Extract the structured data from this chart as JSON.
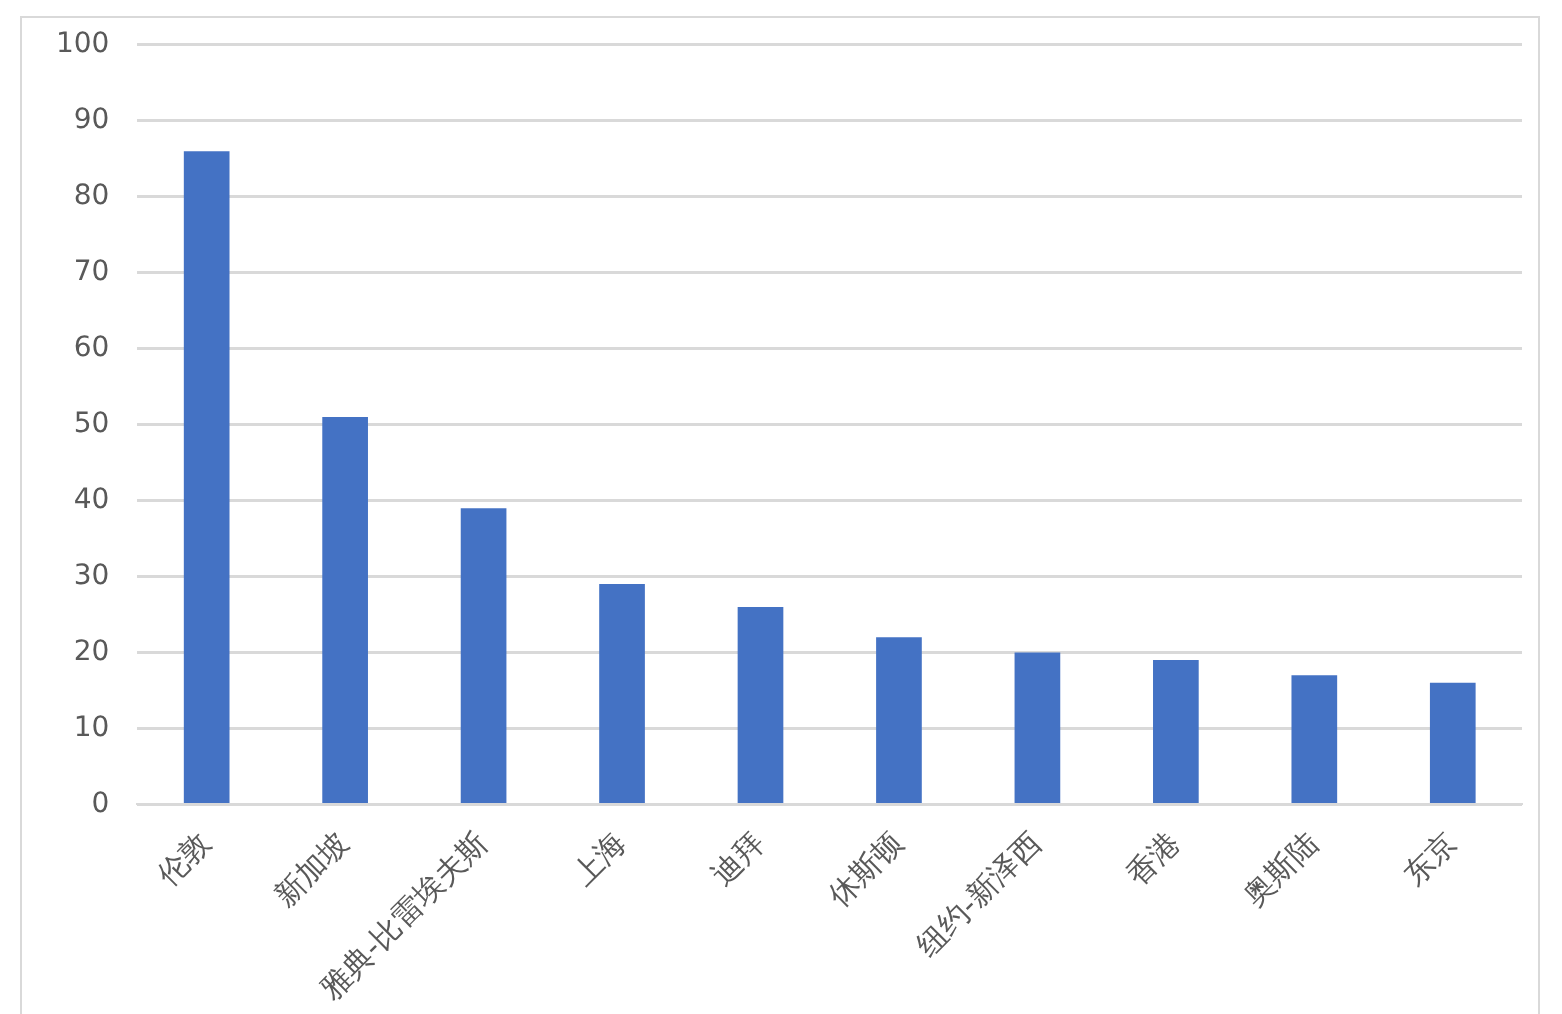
{
  "chart_data": {
    "type": "bar",
    "categories": [
      "伦敦",
      "新加坡",
      "雅典-比雷埃夫斯",
      "上海",
      "迪拜",
      "休斯顿",
      "纽约-新泽西",
      "香港",
      "奥斯陆",
      "东京"
    ],
    "values": [
      86,
      51,
      39,
      29,
      26,
      22,
      20,
      19,
      17,
      16
    ],
    "color": "#4472c4",
    "ylim": [
      0,
      100
    ],
    "yticks": [
      0,
      10,
      20,
      30,
      40,
      50,
      60,
      70,
      80,
      90,
      100
    ],
    "grid": "y",
    "legend": false
  }
}
